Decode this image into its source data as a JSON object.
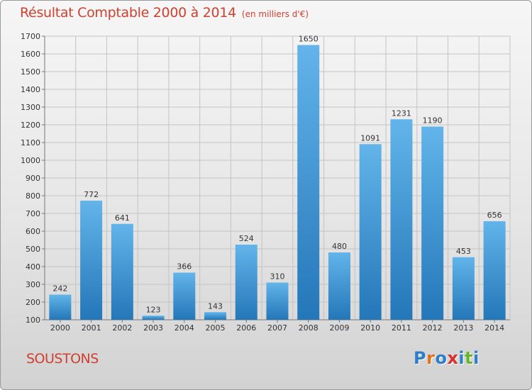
{
  "header": {
    "title": "Résultat Comptable 2000 à 2014",
    "unit": "(en milliers d'€)"
  },
  "footer": {
    "commune": "SOUSTONS",
    "logo_text": "Proxiti"
  },
  "colors": {
    "title": "#d04030",
    "bar_light": "#62b4ea",
    "bar_dark": "#2477b8",
    "logo_letters": [
      "#2e7fc9",
      "#e0721b",
      "#2e7fc9",
      "#d8302b",
      "#2e7fc9",
      "#6ab42a",
      "#2e7fc9"
    ]
  },
  "chart_data": {
    "type": "bar",
    "title": "Résultat Comptable 2000 à 2014",
    "subtitle": "(en milliers d'€)",
    "xlabel": "",
    "ylabel": "",
    "categories": [
      "2000",
      "2001",
      "2002",
      "2003",
      "2004",
      "2005",
      "2006",
      "2007",
      "2008",
      "2009",
      "2010",
      "2011",
      "2012",
      "2013",
      "2014"
    ],
    "values": [
      242,
      772,
      641,
      123,
      366,
      143,
      524,
      310,
      1650,
      480,
      1091,
      1231,
      1190,
      453,
      656
    ],
    "ylim": [
      100,
      1700
    ],
    "yticks": [
      100,
      200,
      300,
      400,
      500,
      600,
      700,
      800,
      900,
      1000,
      1100,
      1200,
      1300,
      1400,
      1500,
      1600,
      1700
    ],
    "grid": true,
    "data_labels": true
  }
}
